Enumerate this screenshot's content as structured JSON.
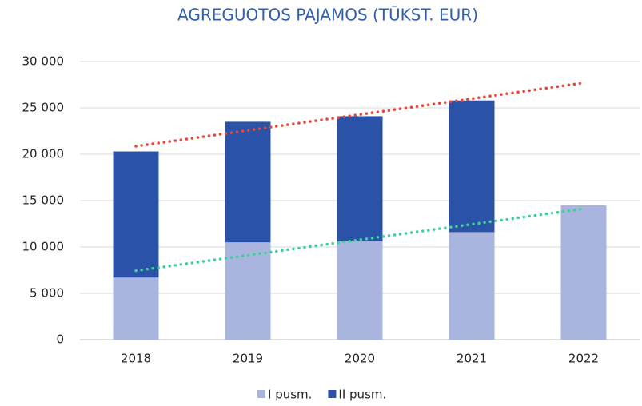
{
  "chart_data": {
    "type": "stacked_bar",
    "title": "AGREGUOTOS PAJAMOS (TŪKST. EUR)",
    "categories": [
      "2018",
      "2019",
      "2020",
      "2021",
      "2022"
    ],
    "series": [
      {
        "name": "I pusm.",
        "color": "#a9b5de",
        "values": [
          6700,
          10500,
          10600,
          11600,
          14500
        ]
      },
      {
        "name": "II pusm.",
        "color": "#2a52a6",
        "values": [
          13600,
          13000,
          13500,
          14200,
          null
        ]
      }
    ],
    "trendlines": [
      {
        "color": "#e8473a",
        "values": [
          20860,
          27700
        ]
      },
      {
        "color": "#3ecf9a",
        "values": [
          7440,
          14120
        ]
      }
    ],
    "ylim": [
      0,
      30000
    ],
    "yticks": [
      0,
      {
        "value": 5000,
        "label": "5 000"
      },
      {
        "value": 10000,
        "label": "10 000"
      },
      {
        "value": 15000,
        "label": "15 000"
      },
      {
        "value": 20000,
        "label": "20 000"
      },
      {
        "value": 25000,
        "label": "25 000"
      },
      {
        "value": 30000,
        "label": "30 000"
      }
    ],
    "grid": true,
    "legend": "bottom"
  }
}
